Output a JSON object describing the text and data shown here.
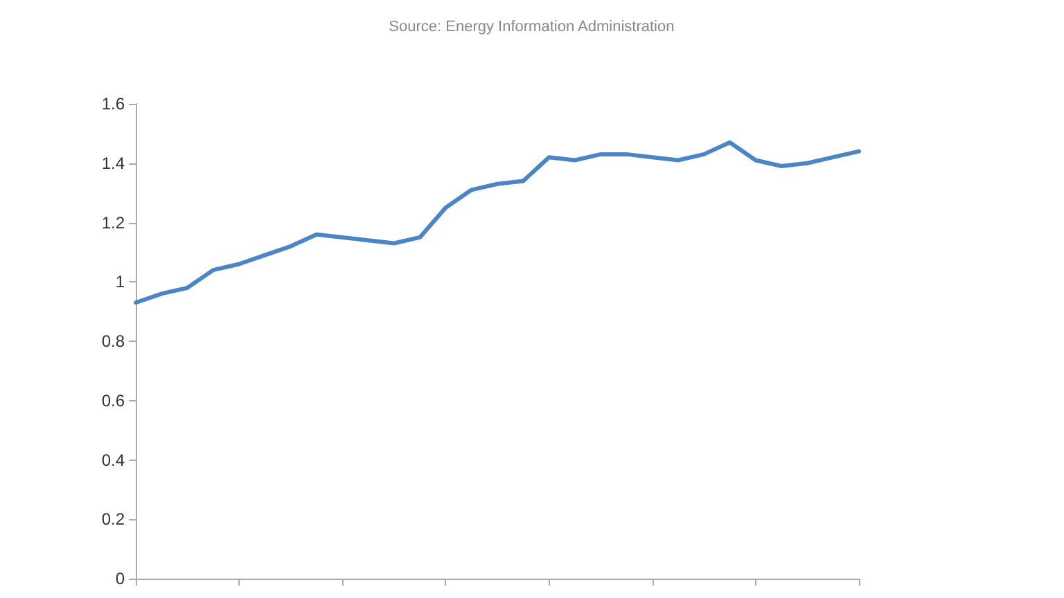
{
  "chart_data": {
    "type": "line",
    "annotations": [
      "Source: Energy Information Administration"
    ],
    "categories": [
      null,
      null,
      null,
      null,
      null,
      null,
      null,
      null,
      null,
      null,
      null,
      null,
      null,
      null,
      null,
      null,
      null,
      null,
      null,
      null,
      null,
      null,
      null,
      null,
      null,
      null,
      null,
      null,
      null
    ],
    "series": [
      {
        "color": "#4a86c5",
        "values": [
          0.93,
          0.96,
          0.98,
          1.04,
          1.06,
          1.09,
          1.12,
          1.16,
          1.15,
          1.14,
          1.13,
          1.15,
          1.25,
          1.31,
          1.33,
          1.34,
          1.42,
          1.41,
          1.43,
          1.43,
          1.42,
          1.41,
          1.43,
          1.47,
          1.41,
          1.39,
          1.4,
          1.42,
          1.44
        ]
      }
    ],
    "ylim": [
      0,
      1.6
    ],
    "yticks": [
      0,
      0.2,
      0.4,
      0.6,
      0.8,
      1,
      1.2,
      1.4,
      1.6
    ],
    "grid": false,
    "tick_labels": "y",
    "marker": "none",
    "line_style": "solid"
  }
}
